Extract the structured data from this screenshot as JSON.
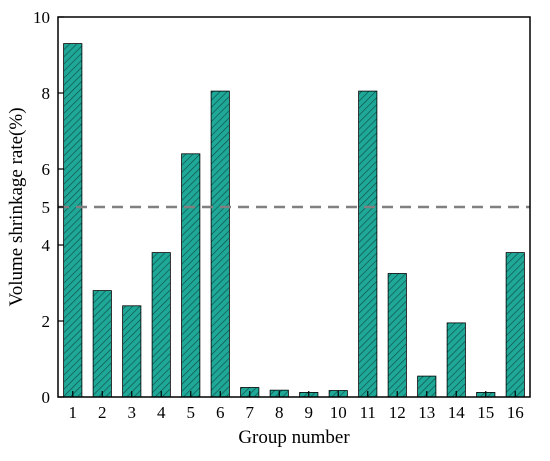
{
  "chart_data": {
    "type": "bar",
    "title": "",
    "xlabel": "Group number",
    "ylabel": "Volume shrinkage rate(%)",
    "categories": [
      "1",
      "2",
      "3",
      "4",
      "5",
      "6",
      "7",
      "8",
      "9",
      "10",
      "11",
      "12",
      "13",
      "14",
      "15",
      "16"
    ],
    "values": [
      9.3,
      2.8,
      2.4,
      3.8,
      6.4,
      8.05,
      0.25,
      0.18,
      0.12,
      0.17,
      8.05,
      3.25,
      0.55,
      1.95,
      0.12,
      3.8
    ],
    "ylim": [
      0,
      10
    ],
    "yticks": [
      0,
      2,
      4,
      5,
      6,
      8,
      10
    ],
    "reference_line": {
      "y": 5,
      "style": "dashed",
      "color": "#808080"
    },
    "bar_color": "#1fa797",
    "bar_hatch": "diagonal",
    "grid": false,
    "legend": "none"
  }
}
